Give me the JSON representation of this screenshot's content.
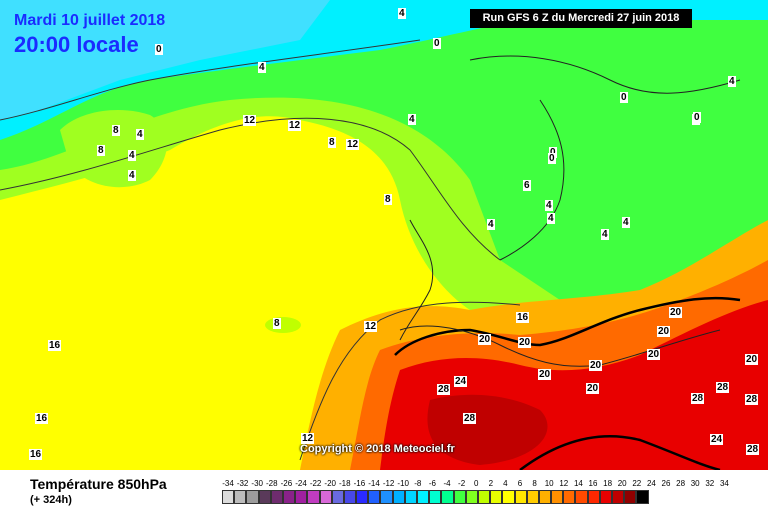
{
  "header": {
    "date": "Mardi 10 juillet 2018",
    "time": "20:00 locale",
    "run": "Run GFS 6 Z du Mercredi 27 juin 2018"
  },
  "copyright": "Copyright © 2018 Meteociel.fr",
  "legend": {
    "title": "Température 850hPa",
    "subtitle": "(+ 324h)",
    "scale": [
      {
        "value": "-34",
        "color": "#dcdcdc"
      },
      {
        "value": "-32",
        "color": "#bcbcbc"
      },
      {
        "value": "-30",
        "color": "#9c9c9c"
      },
      {
        "value": "-28",
        "color": "#5a3a5a"
      },
      {
        "value": "-26",
        "color": "#6e2c6e"
      },
      {
        "value": "-24",
        "color": "#8a228a"
      },
      {
        "value": "-22",
        "color": "#a020a0"
      },
      {
        "value": "-20",
        "color": "#c03cc0"
      },
      {
        "value": "-18",
        "color": "#d868d8"
      },
      {
        "value": "-16",
        "color": "#6a6ae0"
      },
      {
        "value": "-14",
        "color": "#4848e8"
      },
      {
        "value": "-12",
        "color": "#2a2aff"
      },
      {
        "value": "-10",
        "color": "#2060ff"
      },
      {
        "value": "-8",
        "color": "#1e90ff"
      },
      {
        "value": "-6",
        "color": "#00b0ff"
      },
      {
        "value": "-4",
        "color": "#00d4ff"
      },
      {
        "value": "-2",
        "color": "#00f0ff"
      },
      {
        "value": "0",
        "color": "#00ffd0"
      },
      {
        "value": "2",
        "color": "#00ff90"
      },
      {
        "value": "4",
        "color": "#40ff40"
      },
      {
        "value": "6",
        "color": "#80ff20"
      },
      {
        "value": "8",
        "color": "#c0ff00"
      },
      {
        "value": "10",
        "color": "#e8ff00"
      },
      {
        "value": "12",
        "color": "#ffff00"
      },
      {
        "value": "14",
        "color": "#ffe600"
      },
      {
        "value": "16",
        "color": "#ffcc00"
      },
      {
        "value": "18",
        "color": "#ffb000"
      },
      {
        "value": "20",
        "color": "#ff9000"
      },
      {
        "value": "22",
        "color": "#ff6a00"
      },
      {
        "value": "24",
        "color": "#ff4a00"
      },
      {
        "value": "26",
        "color": "#ff2800"
      },
      {
        "value": "28",
        "color": "#e80000"
      },
      {
        "value": "30",
        "color": "#c00000"
      },
      {
        "value": "32",
        "color": "#900000"
      },
      {
        "value": "34",
        "color": "#000000"
      }
    ]
  },
  "contour_labels": [
    {
      "text": "4"
    },
    {
      "text": "0"
    },
    {
      "text": "0"
    },
    {
      "text": "4"
    },
    {
      "text": "0"
    },
    {
      "text": "0"
    },
    {
      "text": "0"
    },
    {
      "text": "4"
    },
    {
      "text": "8"
    },
    {
      "text": "4"
    },
    {
      "text": "8"
    },
    {
      "text": "4"
    },
    {
      "text": "4"
    },
    {
      "text": "12"
    },
    {
      "text": "12"
    },
    {
      "text": "8"
    },
    {
      "text": "12"
    },
    {
      "text": "4"
    },
    {
      "text": "8"
    },
    {
      "text": "6"
    },
    {
      "text": "0"
    },
    {
      "text": "4"
    },
    {
      "text": "4"
    },
    {
      "text": "4"
    },
    {
      "text": "4"
    },
    {
      "text": "4"
    },
    {
      "text": "16"
    },
    {
      "text": "8"
    },
    {
      "text": "12"
    },
    {
      "text": "16"
    },
    {
      "text": "20"
    },
    {
      "text": "20"
    },
    {
      "text": "20"
    },
    {
      "text": "20"
    },
    {
      "text": "20"
    },
    {
      "text": "20"
    },
    {
      "text": "20"
    },
    {
      "text": "20"
    },
    {
      "text": "20"
    },
    {
      "text": "28"
    },
    {
      "text": "24"
    },
    {
      "text": "28"
    },
    {
      "text": "28"
    },
    {
      "text": "28"
    },
    {
      "text": "28"
    },
    {
      "text": "24"
    },
    {
      "text": "28"
    },
    {
      "text": "16"
    },
    {
      "text": "16"
    },
    {
      "text": "12"
    },
    {
      "text": "0"
    }
  ]
}
